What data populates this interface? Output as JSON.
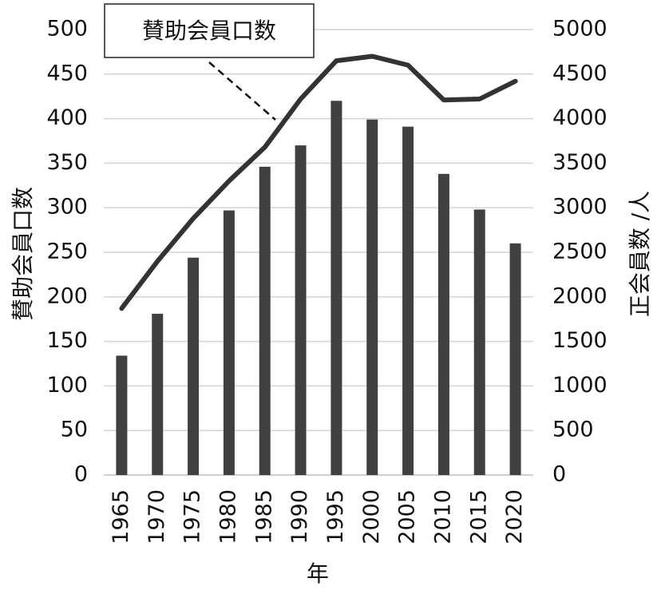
{
  "chart_data": {
    "type": "bar+line",
    "x_label": "年",
    "categories": [
      "1965",
      "1970",
      "1975",
      "1980",
      "1985",
      "1990",
      "1995",
      "2000",
      "2005",
      "2010",
      "2015",
      "2020"
    ],
    "left_axis": {
      "label": "賛助会員口数",
      "range": [
        0,
        500
      ],
      "ticks": [
        "0",
        "50",
        "100",
        "150",
        "200",
        "250",
        "300",
        "350",
        "400",
        "450",
        "500"
      ]
    },
    "right_axis": {
      "label": "正会員数 /人",
      "range": [
        0,
        5000
      ],
      "ticks": [
        "0",
        "500",
        "1000",
        "1500",
        "2000",
        "2500",
        "3000",
        "3500",
        "4000",
        "4500",
        "5000"
      ]
    },
    "series": [
      {
        "name": "賛助会員口数",
        "kind": "bar",
        "axis": "left",
        "color": "#404040",
        "values": [
          134,
          181,
          244,
          297,
          346,
          370,
          420,
          399,
          391,
          338,
          298,
          260
        ]
      },
      {
        "kind": "line",
        "axis": "right",
        "color": "#333333",
        "values": [
          1870,
          2400,
          2880,
          3300,
          3680,
          4220,
          4650,
          4700,
          4600,
          4210,
          4220,
          4420
        ]
      }
    ],
    "callout": {
      "text": "賛助会員口数"
    },
    "grid": true
  }
}
